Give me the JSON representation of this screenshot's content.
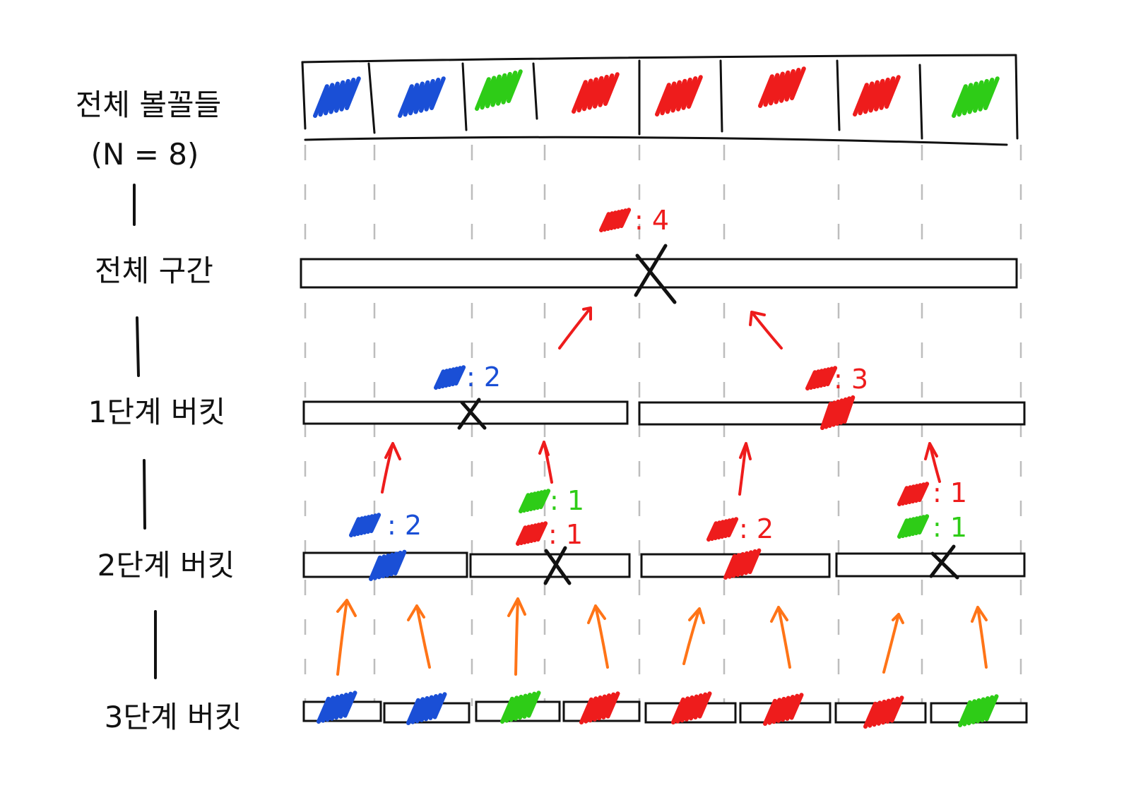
{
  "colors": {
    "blue": "#1a4fd6",
    "green": "#2ecc17",
    "red": "#ee1c1c",
    "orange": "#ff7417",
    "line": "#111111",
    "guide": "#bdbdbd"
  },
  "labels": [
    {
      "id": "all-bulbs",
      "lines": [
        "전체 볼꼴들",
        "(N = 8)"
      ]
    },
    {
      "id": "whole-range",
      "lines": [
        "전체 구간"
      ]
    },
    {
      "id": "level1",
      "lines": [
        "1단계 버킷"
      ]
    },
    {
      "id": "level2",
      "lines": [
        "2단계 버킷"
      ]
    },
    {
      "id": "level3",
      "lines": [
        "3단계 버킷"
      ]
    }
  ],
  "elements": [
    "blue",
    "blue",
    "green",
    "red",
    "red",
    "red",
    "red",
    "green"
  ],
  "whole": {
    "result": "mixed",
    "counts": [
      {
        "color": "red",
        "text": ": 4"
      }
    ]
  },
  "level1": [
    {
      "result": "mixed",
      "counts": [
        {
          "color": "blue",
          "text": ": 2"
        }
      ]
    },
    {
      "result": "red",
      "counts": [
        {
          "color": "red",
          "text": ": 3"
        }
      ]
    }
  ],
  "level2": [
    {
      "result": "blue",
      "counts": [
        {
          "color": "blue",
          "text": ": 2"
        }
      ]
    },
    {
      "result": "mixed",
      "counts": [
        {
          "color": "green",
          "text": ": 1"
        },
        {
          "color": "red",
          "text": ": 1"
        }
      ]
    },
    {
      "result": "red",
      "counts": [
        {
          "color": "red",
          "text": ": 2"
        }
      ]
    },
    {
      "result": "mixed",
      "counts": [
        {
          "color": "red",
          "text": ": 1"
        },
        {
          "color": "green",
          "text": ": 1"
        }
      ]
    }
  ],
  "level3": [
    "blue",
    "blue",
    "green",
    "red",
    "red",
    "red",
    "red",
    "green"
  ]
}
